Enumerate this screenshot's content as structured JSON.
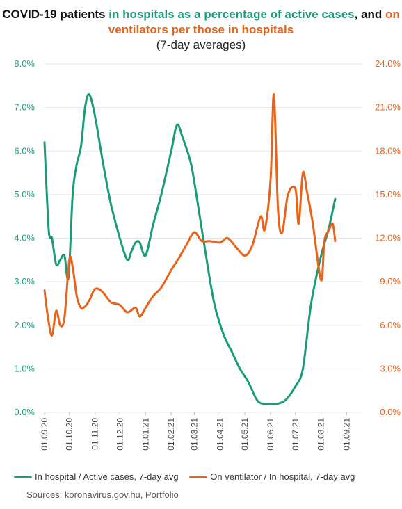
{
  "title": {
    "part1": "COVID-19 patients ",
    "part2_green": "in hospitals as a percentage of active cases",
    "part3": ", and ",
    "part4_orange": "on ventilators per those in hospitals",
    "subtitle": "(7-day averages)"
  },
  "legend": {
    "green": "In hospital / Active cases, 7-day avg",
    "orange": "On ventilator / In hospital, 7-day avg"
  },
  "source": "Sources: koronavirus.gov.hu, Portfolio",
  "colors": {
    "green": "#1a9c7b",
    "orange": "#e8621a",
    "grid": "#e5e5e5"
  },
  "chart_data": {
    "type": "line",
    "x_start": "01.09.20",
    "x_ticks": [
      "01.09.20",
      "01.10.20",
      "01.11.20",
      "01.12.20",
      "01.01.21",
      "01.02.21",
      "01.03.21",
      "01.04.21",
      "01.05.21",
      "01.06.21",
      "01.07.21",
      "01.08.21",
      "01.09.21"
    ],
    "y_left": {
      "ticks": [
        "0.0%",
        "1.0%",
        "2.0%",
        "3.0%",
        "4.0%",
        "5.0%",
        "6.0%",
        "7.0%",
        "8.0%"
      ],
      "range": [
        0,
        8
      ]
    },
    "y_right": {
      "ticks": [
        "0.0%",
        "3.0%",
        "6.0%",
        "9.0%",
        "12.0%",
        "15.0%",
        "18.0%",
        "21.0%",
        "24.0%"
      ],
      "range": [
        0,
        24
      ]
    },
    "grid": true,
    "legend_position": "bottom",
    "series": [
      {
        "name": "In hospital / Active cases, 7-day avg",
        "axis": "left",
        "color": "#1a9c7b",
        "points": [
          [
            "01.09.20",
            6.2
          ],
          [
            "06.09.20",
            4.2
          ],
          [
            "10.09.20",
            4.0
          ],
          [
            "15.09.20",
            3.4
          ],
          [
            "20.09.20",
            3.5
          ],
          [
            "25.09.20",
            3.6
          ],
          [
            "30.09.20",
            3.1
          ],
          [
            "05.10.20",
            5.0
          ],
          [
            "10.10.20",
            5.7
          ],
          [
            "15.10.20",
            6.1
          ],
          [
            "20.10.20",
            7.0
          ],
          [
            "25.10.20",
            7.3
          ],
          [
            "01.11.20",
            6.8
          ],
          [
            "10.11.20",
            5.8
          ],
          [
            "20.11.20",
            4.8
          ],
          [
            "01.12.20",
            4.0
          ],
          [
            "10.12.20",
            3.5
          ],
          [
            "15.12.20",
            3.7
          ],
          [
            "20.12.20",
            3.9
          ],
          [
            "25.12.20",
            3.9
          ],
          [
            "01.01.21",
            3.6
          ],
          [
            "10.01.21",
            4.3
          ],
          [
            "20.01.21",
            5.0
          ],
          [
            "01.02.21",
            6.0
          ],
          [
            "08.02.21",
            6.6
          ],
          [
            "15.02.21",
            6.3
          ],
          [
            "25.02.21",
            5.7
          ],
          [
            "05.03.21",
            4.8
          ],
          [
            "15.03.21",
            3.6
          ],
          [
            "25.03.21",
            2.5
          ],
          [
            "05.04.21",
            1.8
          ],
          [
            "15.04.21",
            1.4
          ],
          [
            "25.04.21",
            1.0
          ],
          [
            "05.05.21",
            0.7
          ],
          [
            "15.05.21",
            0.3
          ],
          [
            "22.05.21",
            0.2
          ],
          [
            "01.06.21",
            0.2
          ],
          [
            "10.06.21",
            0.2
          ],
          [
            "20.06.21",
            0.3
          ],
          [
            "01.07.21",
            0.6
          ],
          [
            "10.07.21",
            1.0
          ],
          [
            "20.07.21",
            2.5
          ],
          [
            "01.08.21",
            3.6
          ],
          [
            "10.08.21",
            4.2
          ],
          [
            "18.08.21",
            4.9
          ]
        ]
      },
      {
        "name": "On ventilator / In hospital, 7-day avg",
        "axis": "right",
        "color": "#e8621a",
        "points": [
          [
            "01.09.20",
            8.4
          ],
          [
            "05.09.20",
            6.6
          ],
          [
            "10.09.20",
            5.3
          ],
          [
            "15.09.20",
            7.0
          ],
          [
            "20.09.20",
            6.0
          ],
          [
            "25.09.20",
            6.5
          ],
          [
            "01.10.20",
            10.5
          ],
          [
            "05.10.20",
            10.0
          ],
          [
            "10.10.20",
            8.0
          ],
          [
            "15.10.20",
            7.2
          ],
          [
            "20.10.20",
            7.3
          ],
          [
            "25.10.20",
            7.7
          ],
          [
            "01.11.20",
            8.5
          ],
          [
            "10.11.20",
            8.3
          ],
          [
            "20.11.20",
            7.6
          ],
          [
            "01.12.20",
            7.4
          ],
          [
            "10.12.20",
            6.9
          ],
          [
            "20.12.20",
            7.2
          ],
          [
            "25.12.20",
            6.6
          ],
          [
            "01.01.21",
            7.2
          ],
          [
            "10.01.21",
            8.0
          ],
          [
            "20.01.21",
            8.6
          ],
          [
            "01.02.21",
            9.8
          ],
          [
            "10.02.21",
            10.6
          ],
          [
            "20.02.21",
            11.6
          ],
          [
            "01.03.21",
            12.4
          ],
          [
            "10.03.21",
            11.8
          ],
          [
            "20.03.21",
            11.8
          ],
          [
            "01.04.21",
            11.7
          ],
          [
            "10.04.21",
            12.0
          ],
          [
            "20.04.21",
            11.4
          ],
          [
            "01.05.21",
            10.8
          ],
          [
            "10.05.21",
            11.5
          ],
          [
            "20.05.21",
            13.5
          ],
          [
            "25.05.21",
            12.6
          ],
          [
            "01.06.21",
            16.0
          ],
          [
            "05.06.21",
            21.9
          ],
          [
            "10.06.21",
            14.0
          ],
          [
            "15.06.21",
            12.4
          ],
          [
            "22.06.21",
            15.0
          ],
          [
            "01.07.21",
            15.4
          ],
          [
            "05.07.21",
            13.0
          ],
          [
            "10.07.21",
            16.5
          ],
          [
            "15.07.21",
            15.2
          ],
          [
            "22.07.21",
            13.0
          ],
          [
            "01.08.21",
            9.1
          ],
          [
            "05.08.21",
            11.8
          ],
          [
            "10.08.21",
            12.5
          ],
          [
            "15.08.21",
            13.0
          ],
          [
            "18.08.21",
            11.8
          ]
        ]
      }
    ]
  }
}
